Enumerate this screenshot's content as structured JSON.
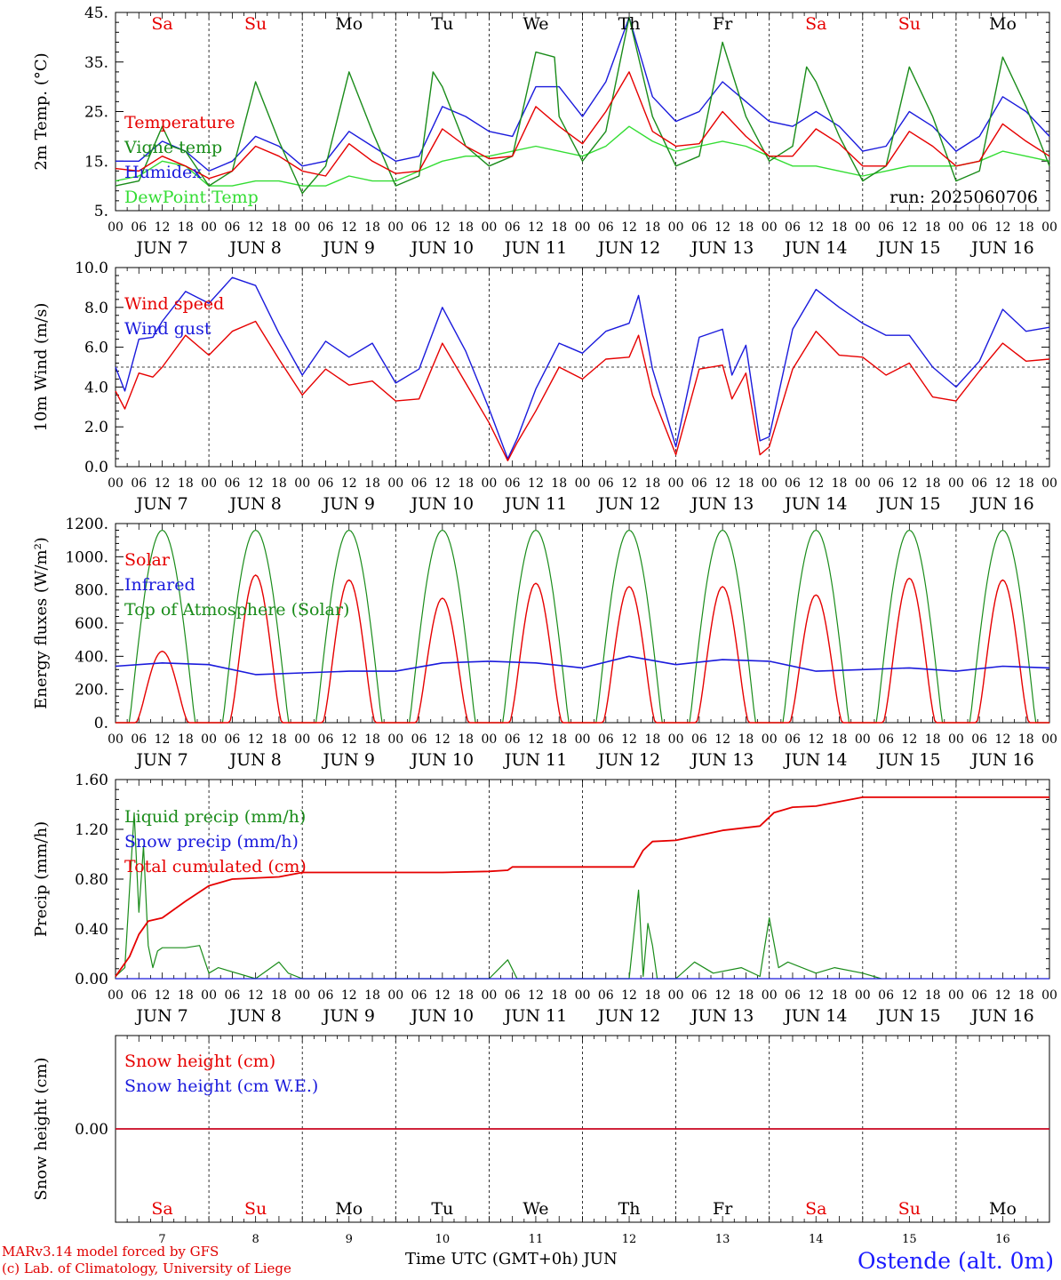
{
  "colors": {
    "red": "#e60000",
    "green": "#1a8c1a",
    "blue": "#1a1adc",
    "lightgreen": "#33dd33",
    "black": "#000000"
  },
  "footer": {
    "model": "MARv3.14 model forced by GFS",
    "copyright": "(c) Lab. of Climatology, University of Liege",
    "xtitle": "Time UTC (GMT+0h) JUN",
    "station": "Ostende (alt. 0m)"
  },
  "days": {
    "weekday": [
      "Sa",
      "Su",
      "Mo",
      "Tu",
      "We",
      "Th",
      "Fr",
      "Sa",
      "Su",
      "Mo"
    ],
    "weekend": [
      true,
      true,
      false,
      false,
      false,
      false,
      false,
      true,
      true,
      false
    ],
    "dates": [
      "JUN  7",
      "JUN  8",
      "JUN  9",
      "JUN 10",
      "JUN 11",
      "JUN 12",
      "JUN 13",
      "JUN 14",
      "JUN 15",
      "JUN 16"
    ],
    "daynum": [
      "7",
      "8",
      "9",
      "10",
      "11",
      "12",
      "13",
      "14",
      "15",
      "16"
    ],
    "hours": [
      "00",
      "06",
      "12",
      "18"
    ],
    "end_hour": "00"
  },
  "chart_data": [
    {
      "type": "line",
      "ylabel": "2m Temp. (°C)",
      "ylim": [
        5,
        45
      ],
      "yticks": [
        "5.",
        "15.",
        "25.",
        "35.",
        "45."
      ],
      "run_label": "run: 2025060706",
      "x_unit": "days since JUN 7 00 UTC",
      "series": [
        {
          "name": "Temperature",
          "color": "red",
          "x": [
            0,
            0.25,
            0.5,
            0.75,
            1,
            1.25,
            1.5,
            1.75,
            2,
            2.25,
            2.5,
            2.75,
            3,
            3.25,
            3.5,
            3.75,
            4,
            4.25,
            4.5,
            4.75,
            5,
            5.25,
            5.5,
            5.75,
            6,
            6.25,
            6.5,
            6.75,
            7,
            7.25,
            7.5,
            7.75,
            8,
            8.25,
            8.5,
            8.75,
            9,
            9.25,
            9.5,
            9.75,
            10
          ],
          "y": [
            13.5,
            13,
            16,
            14,
            11.5,
            13,
            18,
            16,
            13,
            12,
            18.5,
            15,
            12.5,
            13,
            21.5,
            18,
            15.5,
            16,
            26,
            22,
            18.5,
            25,
            33,
            21,
            18,
            18.5,
            25,
            20,
            16,
            16,
            21.5,
            18.5,
            14,
            14,
            21,
            18,
            14,
            15,
            22.5,
            19,
            16
          ]
        },
        {
          "name": "Vigne temp",
          "color": "green",
          "x": [
            0,
            0.25,
            0.5,
            0.6,
            0.75,
            1,
            1.25,
            1.5,
            1.75,
            2,
            2.25,
            2.5,
            2.75,
            3,
            3.25,
            3.4,
            3.5,
            3.75,
            4,
            4.25,
            4.5,
            4.7,
            4.75,
            5,
            5.25,
            5.5,
            5.75,
            6,
            6.25,
            6.5,
            6.75,
            7,
            7.25,
            7.4,
            7.5,
            7.75,
            8,
            8.25,
            8.5,
            8.75,
            9,
            9.25,
            9.5,
            9.75,
            10
          ],
          "y": [
            10,
            11,
            22,
            18,
            17,
            10,
            13,
            31,
            19,
            8.5,
            14,
            33,
            21,
            10,
            12,
            33,
            30,
            18,
            14,
            16,
            37,
            36,
            24,
            15,
            21,
            44,
            24,
            14,
            16,
            39,
            24,
            15,
            18,
            34,
            31,
            20,
            11,
            14,
            34,
            24,
            11,
            13,
            36,
            26,
            14
          ]
        },
        {
          "name": "Humidex",
          "color": "blue",
          "x": [
            0,
            0.25,
            0.5,
            0.75,
            1,
            1.25,
            1.5,
            1.75,
            2,
            2.25,
            2.5,
            2.75,
            3,
            3.25,
            3.5,
            3.75,
            4,
            4.25,
            4.5,
            4.75,
            5,
            5.25,
            5.5,
            5.75,
            6,
            6.25,
            6.5,
            6.75,
            7,
            7.25,
            7.5,
            7.75,
            8,
            8.25,
            8.5,
            8.75,
            9,
            9.25,
            9.5,
            9.75,
            10
          ],
          "y": [
            15,
            15,
            19,
            17,
            13,
            15,
            20,
            18,
            14,
            15,
            21,
            18,
            15,
            16,
            26,
            24,
            21,
            20,
            30,
            30,
            24,
            31,
            44,
            28,
            23,
            25,
            31,
            27,
            23,
            22,
            25,
            22,
            17,
            18,
            25,
            22,
            17,
            20,
            28,
            25,
            20
          ]
        },
        {
          "name": "DewPoint Temp",
          "color": "lightgreen",
          "x": [
            0,
            0.25,
            0.5,
            0.75,
            1,
            1.25,
            1.5,
            1.75,
            2,
            2.25,
            2.5,
            2.75,
            3,
            3.25,
            3.5,
            3.75,
            4,
            4.25,
            4.5,
            4.75,
            5,
            5.25,
            5.5,
            5.75,
            6,
            6.25,
            6.5,
            6.75,
            7,
            7.25,
            7.5,
            7.75,
            8,
            8.25,
            8.5,
            8.75,
            9,
            9.25,
            9.5,
            9.75,
            10
          ],
          "y": [
            11,
            12,
            15,
            14,
            10,
            10,
            11,
            11,
            10,
            10,
            12,
            11,
            11,
            13,
            15,
            16,
            16,
            17,
            18,
            17,
            16,
            18,
            22,
            19,
            17,
            18,
            19,
            18,
            16,
            14,
            14,
            13,
            12,
            13,
            14,
            14,
            14,
            15,
            17,
            16,
            15
          ]
        }
      ]
    },
    {
      "type": "line",
      "ylabel": "10m Wind (m/s)",
      "ylim": [
        0,
        10
      ],
      "yticks": [
        "0.0",
        "2.0",
        "4.0",
        "6.0",
        "8.0",
        "10.0"
      ],
      "reference_line": 5,
      "x_unit": "days since JUN 7 00 UTC",
      "series": [
        {
          "name": "Wind speed",
          "color": "red",
          "x": [
            0,
            0.1,
            0.25,
            0.4,
            0.5,
            0.75,
            1,
            1.25,
            1.5,
            1.75,
            2,
            2.25,
            2.5,
            2.75,
            3,
            3.25,
            3.5,
            3.75,
            4,
            4.2,
            4.3,
            4.5,
            4.75,
            5,
            5.25,
            5.5,
            5.6,
            5.75,
            6,
            6.25,
            6.5,
            6.6,
            6.75,
            6.9,
            7,
            7.25,
            7.5,
            7.75,
            8,
            8.25,
            8.5,
            8.75,
            9,
            9.25,
            9.5,
            9.75,
            10
          ],
          "y": [
            3.8,
            2.9,
            4.7,
            4.5,
            5,
            6.6,
            5.6,
            6.8,
            7.3,
            5.4,
            3.6,
            4.9,
            4.1,
            4.3,
            3.3,
            3.4,
            6.2,
            4.2,
            2.2,
            0.3,
            1.2,
            2.8,
            5,
            4.4,
            5.4,
            5.5,
            6.6,
            3.6,
            0.6,
            4.9,
            5.1,
            3.4,
            4.7,
            0.6,
            1,
            4.9,
            6.8,
            5.6,
            5.5,
            4.6,
            5.2,
            3.5,
            3.3,
            4.8,
            6.2,
            5.3,
            5.4
          ]
        },
        {
          "name": "Wind gust",
          "color": "blue",
          "x": [
            0,
            0.1,
            0.25,
            0.4,
            0.5,
            0.75,
            1,
            1.25,
            1.5,
            1.75,
            2,
            2.25,
            2.5,
            2.75,
            3,
            3.25,
            3.5,
            3.75,
            4,
            4.2,
            4.3,
            4.5,
            4.75,
            5,
            5.25,
            5.5,
            5.6,
            5.75,
            6,
            6.25,
            6.5,
            6.6,
            6.75,
            6.9,
            7,
            7.25,
            7.5,
            7.75,
            8,
            8.25,
            8.5,
            8.75,
            9,
            9.25,
            9.5,
            9.75,
            10
          ],
          "y": [
            5,
            3.8,
            6.4,
            6.5,
            7.3,
            8.8,
            8.2,
            9.5,
            9.1,
            6.7,
            4.6,
            6.3,
            5.5,
            6.2,
            4.2,
            4.9,
            8,
            5.8,
            2.9,
            0.4,
            1.4,
            3.9,
            6.2,
            5.7,
            6.8,
            7.2,
            8.6,
            4.9,
            1,
            6.5,
            6.9,
            4.6,
            6.1,
            1.3,
            1.5,
            6.9,
            8.9,
            8,
            7.2,
            6.6,
            6.6,
            5,
            4,
            5.3,
            7.9,
            6.8,
            7
          ]
        }
      ]
    },
    {
      "type": "line",
      "ylabel": "Energy fluxes (W/m²)",
      "ylim": [
        0,
        1200
      ],
      "yticks": [
        "0.",
        "200.",
        "400.",
        "600.",
        "800.",
        "1000.",
        "1200."
      ],
      "x_unit": "days since JUN 7 00 UTC",
      "series": [
        {
          "name": "Solar",
          "color": "red",
          "peak": [
            430,
            890,
            860,
            750,
            840,
            820,
            820,
            770,
            870,
            860
          ]
        },
        {
          "name": "Infrared",
          "color": "blue",
          "x": [
            0,
            0.5,
            1,
            1.5,
            2,
            2.5,
            3,
            3.5,
            4,
            4.5,
            5,
            5.5,
            6,
            6.5,
            7,
            7.5,
            8,
            8.5,
            9,
            9.5,
            10
          ],
          "y": [
            340,
            360,
            350,
            290,
            300,
            310,
            310,
            360,
            370,
            360,
            330,
            400,
            350,
            380,
            370,
            310,
            320,
            330,
            310,
            340,
            330
          ]
        },
        {
          "name": "Top of Atmosphere (Solar)",
          "color": "green",
          "peak": 1160
        }
      ]
    },
    {
      "type": "line",
      "ylabel": "Precip (mm/h)",
      "ylim": [
        0,
        1.8
      ],
      "yticks": [
        "0.00",
        "0.40",
        "0.80",
        "1.20",
        "1.60"
      ],
      "x_unit": "days since JUN 7 00 UTC",
      "series": [
        {
          "name": "Liquid precip (mm/h)",
          "color": "green",
          "x": [
            0,
            0.1,
            0.2,
            0.25,
            0.3,
            0.35,
            0.4,
            0.45,
            0.5,
            0.75,
            0.9,
            1,
            1.1,
            1.5,
            1.75,
            1.85,
            2,
            2.5,
            4,
            4.2,
            4.3,
            5.5,
            5.6,
            5.65,
            5.7,
            5.75,
            5.8,
            5.9,
            6,
            6.2,
            6.4,
            6.7,
            6.9,
            7,
            7.1,
            7.2,
            7.5,
            7.7,
            8,
            8.2
          ],
          "y": [
            0.02,
            0.1,
            1.5,
            0.6,
            1.2,
            0.3,
            0.1,
            0.25,
            0.28,
            0.28,
            0.3,
            0.05,
            0.1,
            0,
            0.15,
            0.05,
            0,
            0,
            0,
            0.17,
            0,
            0,
            0.8,
            0.02,
            0.5,
            0.3,
            0,
            0,
            0,
            0.15,
            0.05,
            0.1,
            0.02,
            0.55,
            0.1,
            0.15,
            0.05,
            0.1,
            0.05,
            0
          ]
        },
        {
          "name": "Snow precip (mm/h)",
          "color": "blue",
          "x": [
            0,
            10
          ],
          "y": [
            0,
            0
          ]
        },
        {
          "name": "Total cumulated (cm)",
          "color": "red",
          "x": [
            0,
            0.15,
            0.25,
            0.35,
            0.5,
            0.75,
            1,
            1.25,
            1.75,
            2,
            2.5,
            3,
            3.5,
            4,
            4.2,
            4.25,
            4.5,
            5,
            5.55,
            5.65,
            5.75,
            6,
            6.5,
            6.9,
            7.05,
            7.25,
            7.5,
            8,
            8.5,
            9,
            10
          ],
          "y": [
            0.02,
            0.2,
            0.4,
            0.52,
            0.55,
            0.7,
            0.84,
            0.9,
            0.92,
            0.96,
            0.96,
            0.96,
            0.96,
            0.97,
            0.98,
            1.01,
            1.01,
            1.01,
            1.01,
            1.16,
            1.24,
            1.25,
            1.34,
            1.38,
            1.5,
            1.55,
            1.56,
            1.64,
            1.64,
            1.64,
            1.64
          ]
        }
      ]
    },
    {
      "type": "line",
      "ylabel": "Snow height (cm)",
      "ytick_label": "0.00",
      "x_unit": "days since JUN 7 00 UTC",
      "series": [
        {
          "name": "Snow height (cm)",
          "color": "red",
          "x": [
            0,
            10
          ],
          "y": [
            0,
            0
          ]
        },
        {
          "name": "Snow height (cm W.E.)",
          "color": "blue",
          "x": [
            0,
            10
          ],
          "y": [
            0,
            0
          ]
        }
      ]
    }
  ]
}
